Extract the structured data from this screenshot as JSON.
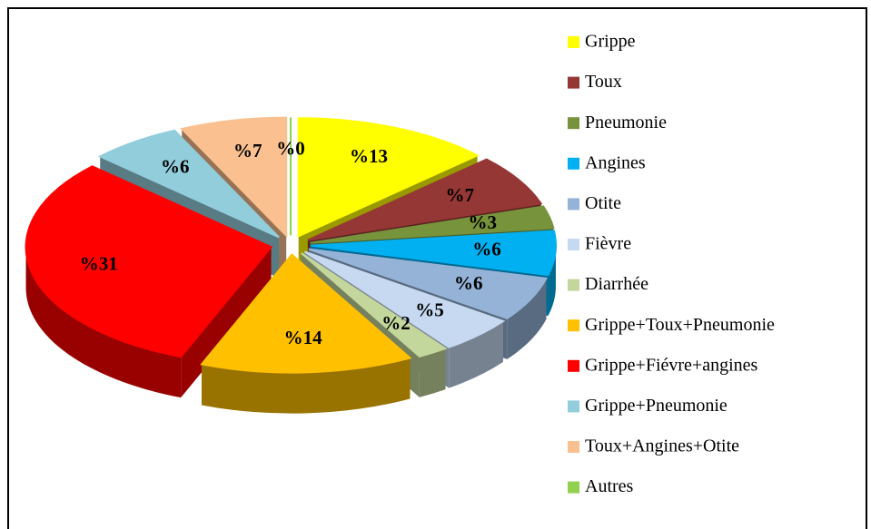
{
  "chart_data": {
    "type": "pie",
    "categories": [
      "Grippe",
      "Toux",
      "Pneumonie",
      "Angines",
      "Otite",
      "Fièvre",
      "Diarrhée",
      "Grippe+Toux+Pneumonie",
      "Grippe+Fiévre+angines",
      "Grippe+Pneumonie",
      "Toux+Angines+Otite",
      "Autres"
    ],
    "values": [
      13,
      7,
      3,
      6,
      6,
      5,
      2,
      14,
      31,
      6,
      7,
      0
    ],
    "value_labels": [
      "%13",
      "%7",
      "%3",
      "%6",
      "%6",
      "%5",
      "%2",
      "%14",
      "%31",
      "%6",
      "%7",
      "%0"
    ],
    "colors": [
      "#ffff00",
      "#953735",
      "#77933c",
      "#00b0f0",
      "#95b3d7",
      "#c6d9f1",
      "#c3d69b",
      "#ffc000",
      "#ff0000",
      "#92cddc",
      "#fac090",
      "#92d050"
    ],
    "legend": "right"
  }
}
